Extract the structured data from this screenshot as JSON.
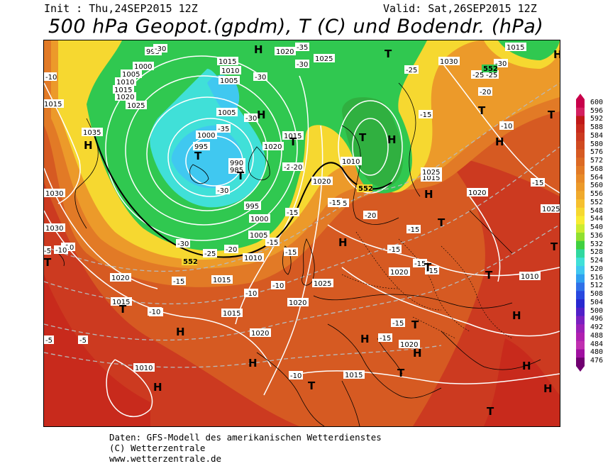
{
  "header": {
    "init": "Init : Thu,24SEP2015 12Z",
    "valid": "Valid: Sat,26SEP2015 12Z",
    "title": "500 hPa Geopot.(gpdm), T (C) und Bodendr. (hPa)"
  },
  "legend": {
    "levels": [
      "600",
      "596",
      "592",
      "588",
      "584",
      "580",
      "576",
      "572",
      "568",
      "564",
      "560",
      "556",
      "552",
      "548",
      "544",
      "540",
      "536",
      "532",
      "528",
      "524",
      "520",
      "516",
      "512",
      "508",
      "504",
      "500",
      "496",
      "492",
      "488",
      "484",
      "480",
      "476"
    ],
    "colors": [
      "#c8004a",
      "#d42060",
      "#c01818",
      "#c82a1c",
      "#cc3a20",
      "#d04a20",
      "#d65a22",
      "#dc6a24",
      "#e27a26",
      "#e88a28",
      "#ec9a2a",
      "#f0aa2c",
      "#f6c02e",
      "#f6d830",
      "#f8ec32",
      "#ccec30",
      "#90e030",
      "#40d040",
      "#30d8a0",
      "#40e0d8",
      "#40c8f0",
      "#30a0f0",
      "#3070e8",
      "#2848e0",
      "#2828d0",
      "#5020c8",
      "#7a20c0",
      "#9a20b8",
      "#b020b0",
      "#c030b0",
      "#a010a0",
      "#700070"
    ]
  },
  "map": {
    "pressure_labels": [
      "995",
      "1020",
      "1025",
      "1030",
      "1000",
      "1005",
      "1010",
      "1015",
      "1020",
      "1025",
      "1015",
      "1010",
      "1005",
      "1015",
      "1035",
      "1030",
      "1000",
      "995",
      "990",
      "985",
      "1020",
      "1015",
      "995",
      "1005",
      "1010",
      "1020",
      "1025",
      "1030",
      "1015",
      "1020",
      "1010",
      "1005",
      "1000",
      "1025",
      "1020",
      "1015",
      "1010",
      "1025",
      "1020",
      "1015",
      "1020",
      "1015",
      "1020",
      "1010",
      "1015",
      "1020",
      "1025",
      "1015"
    ],
    "temp_labels": [
      "-30",
      "-35",
      "-30",
      "-30",
      "-35",
      "-25",
      "-20",
      "-30",
      "-30",
      "-25",
      "-20",
      "-10",
      "-10",
      "-5",
      "-15",
      "-10",
      "-15",
      "-20",
      "-25",
      "-30",
      "-10",
      "-15",
      "-15",
      "-15",
      "-15",
      "-20",
      "-15",
      "-15",
      "-15",
      "-10",
      "-10",
      "-15",
      "-10",
      "-15",
      "-15",
      "-20",
      "-25",
      "-30",
      "-5",
      "-5",
      "-10",
      "-15",
      "-10"
    ],
    "geo_552": [
      "552",
      "552",
      "552"
    ],
    "highs": [
      "H",
      "H",
      "H",
      "H",
      "H",
      "H",
      "H",
      "H",
      "H",
      "H",
      "H",
      "H",
      "H",
      "H",
      "H",
      "H"
    ],
    "lows": [
      "T",
      "T",
      "T",
      "T",
      "T",
      "T",
      "T",
      "T",
      "T",
      "T",
      "T",
      "T",
      "T",
      "T",
      "T",
      "T",
      "T"
    ]
  },
  "footer": {
    "line1": "Daten: GFS-Modell des amerikanischen Wetterdienstes",
    "line2": "(C) Wetterzentrale",
    "line3": "www.wetterzentrale.de"
  }
}
